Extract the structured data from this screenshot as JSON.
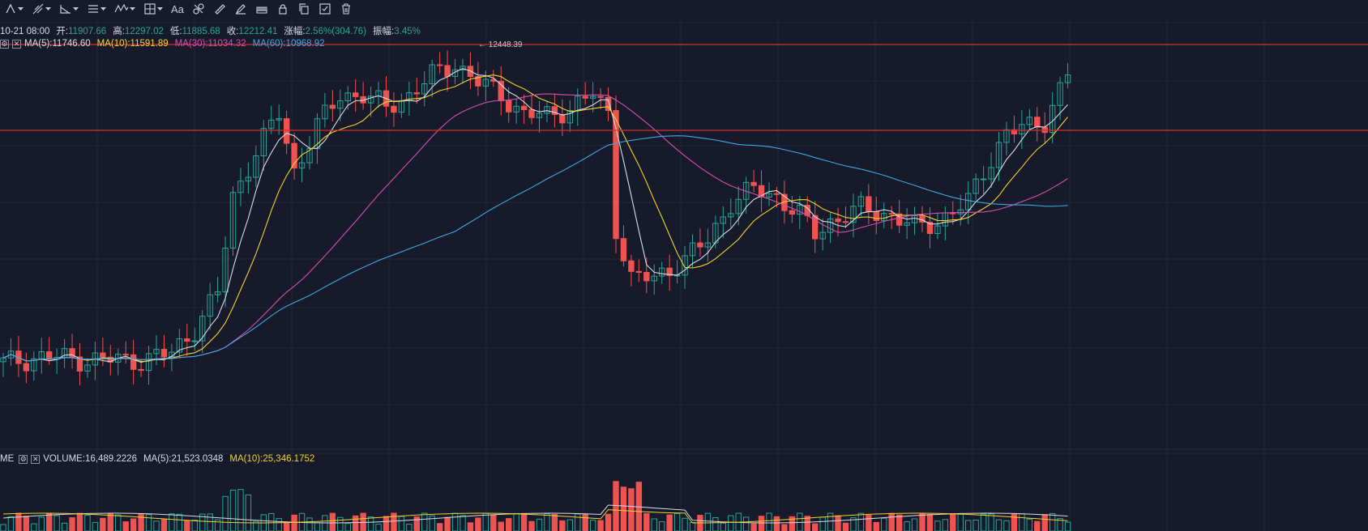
{
  "toolbar": {
    "items": [
      {
        "name": "cursor-tool",
        "icon": "cursor-icon"
      },
      {
        "name": "trendline-tool",
        "icon": "trendline-icon"
      },
      {
        "name": "angle-tool",
        "icon": "angle-icon"
      },
      {
        "name": "fib-tool",
        "icon": "horizontal-lines-icon"
      },
      {
        "name": "wave-tool",
        "icon": "wave-icon"
      },
      {
        "name": "measure-tool",
        "icon": "measure-grid-icon"
      },
      {
        "name": "text-tool",
        "icon": "text-icon",
        "label": "Aa"
      },
      {
        "name": "pattern-tool",
        "icon": "pattern-icon"
      },
      {
        "name": "ruler-tool",
        "icon": "ruler-icon"
      },
      {
        "name": "brush-tool",
        "icon": "brush-icon"
      },
      {
        "name": "magnet-tool",
        "icon": "magnet-icon"
      },
      {
        "name": "lock-tool",
        "icon": "lock-icon"
      },
      {
        "name": "copy-tool",
        "icon": "copy-icon"
      },
      {
        "name": "show-hide-tool",
        "icon": "show-hide-icon"
      },
      {
        "name": "trash-tool",
        "icon": "trash-icon"
      }
    ]
  },
  "ohlc": {
    "date": "10-21 08:00",
    "open_label": "开:",
    "open": "11907.66",
    "high_label": "高:",
    "high": "12297.02",
    "low_label": "低:",
    "low": "11885.68",
    "close_label": "收:",
    "close": "12212.41",
    "change_label": "涨幅:",
    "change": "2.56%(304.76)",
    "amp_label": "振幅:",
    "amp": "3.45%"
  },
  "ma": {
    "ma5": "MA(5):11746.60",
    "ma10": "MA(10):11591.89",
    "ma30": "MA(30):11034.32",
    "ma60": "MA(60):10968.92"
  },
  "volume": {
    "prefix": "ME",
    "volume": "VOLUME:16,489.2226",
    "ma5": "MA(5):21,523.0348",
    "ma10": "MA(10):25,346.1752"
  },
  "max_marker": "12448.39",
  "colors": {
    "background": "#161a2b",
    "up": "#26a69a",
    "down": "#ef5350",
    "grid": "#232838",
    "hline": "#d32f2f",
    "ma5": "#d9dce6",
    "ma10": "#f5d32a",
    "ma30": "#d54fb0",
    "ma60": "#3fa9e0"
  }
}
